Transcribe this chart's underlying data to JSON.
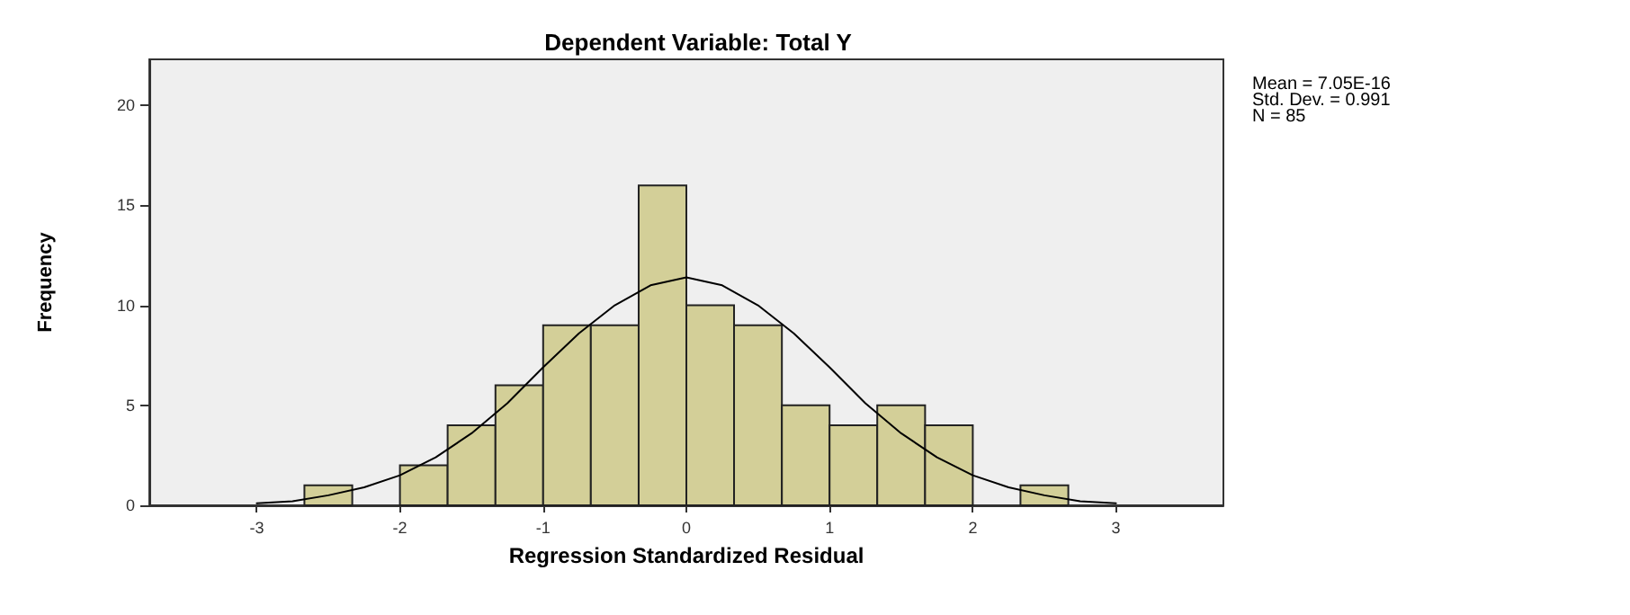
{
  "chart_data": {
    "type": "histogram",
    "title": "Dependent Variable: Total Y",
    "xlabel": "Regression Standardized Residual",
    "ylabel": "Frequency",
    "annotations": [
      "Mean = 7.05E-16",
      "Std. Dev. = 0.991",
      "N = 85"
    ],
    "xlim": [
      -3.75,
      3.75
    ],
    "xticks": [
      -3,
      -2,
      -1,
      0,
      1,
      2,
      3
    ],
    "ylim": [
      0,
      22.3
    ],
    "yticks": [
      0,
      5,
      10,
      15,
      20
    ],
    "grid": false,
    "series": [
      {
        "color": "#d3cf98",
        "bins": [
          -2.667,
          -2.333,
          -2,
          -1.667,
          -1.333,
          -1,
          -0.667,
          -0.333,
          0,
          0.333,
          0.667,
          1,
          1.333,
          1.667,
          2,
          2.333,
          2.667
        ],
        "values": [
          1,
          0,
          2,
          4,
          6,
          9,
          9,
          16,
          10,
          9,
          5,
          4,
          5,
          4,
          0,
          1
        ]
      },
      {
        "type": "line",
        "color": "#000000",
        "marker": "none",
        "line_style": "solid",
        "x": [
          -3,
          -2.75,
          -2.5,
          -2.25,
          -2,
          -1.75,
          -1.5,
          -1.25,
          -1,
          -0.75,
          -0.5,
          -0.25,
          0,
          0.25,
          0.5,
          0.75,
          1,
          1.25,
          1.5,
          1.75,
          2,
          2.25,
          2.5,
          2.75,
          3
        ],
        "values": [
          0.1,
          0.2,
          0.5,
          0.9,
          1.5,
          2.4,
          3.6,
          5.1,
          6.9,
          8.6,
          10,
          11,
          11.4,
          11,
          10,
          8.6,
          6.9,
          5.1,
          3.6,
          2.4,
          1.5,
          0.9,
          0.5,
          0.2,
          0.1
        ]
      }
    ]
  }
}
